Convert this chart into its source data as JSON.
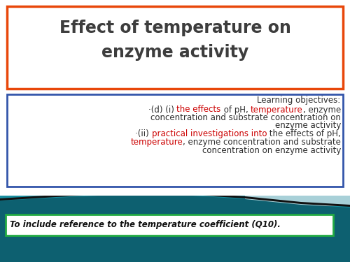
{
  "title_line1": "Effect of temperature on",
  "title_line2": "enzyme activity",
  "title_box_color": "#E8470A",
  "title_text_color": "#3d3d3d",
  "bg_color": "#ffffff",
  "learning_objectives_label": "Learning objectives:",
  "objectives_box_color": "#3355aa",
  "footer_text": "To include reference to the temperature coefficient (Q10).",
  "footer_box_color": "#22aa44",
  "teal_color": "#1a8fa0",
  "dark_teal": "#0d6070",
  "black_swoosh": "#111111",
  "light_teal_right": "#a8d0d8"
}
